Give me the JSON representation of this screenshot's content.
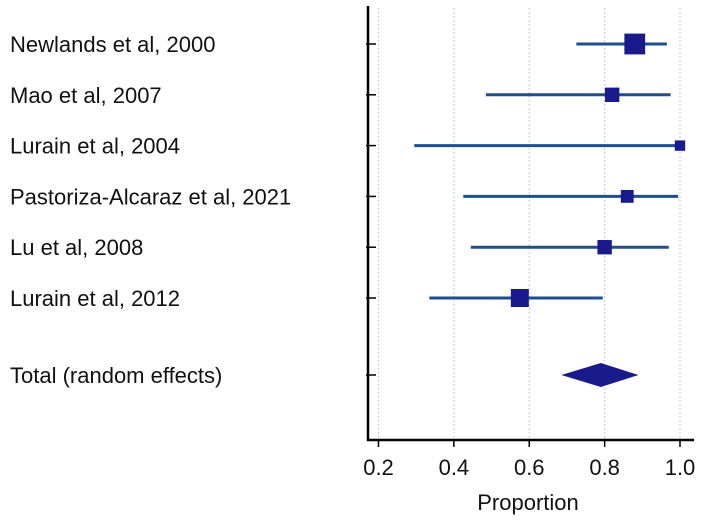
{
  "chart_data": {
    "type": "forest",
    "xlabel": "Proportion",
    "xlim": [
      0.2,
      1.0
    ],
    "xticks": [
      0.2,
      0.4,
      0.6,
      0.8,
      1.0
    ],
    "xtick_labels": [
      "0.2",
      "0.4",
      "0.6",
      "0.8",
      "1.0"
    ],
    "grid": true,
    "marker_color": "#1a1a8c",
    "ci_color": "#1f4e8a",
    "studies": [
      {
        "label": "Newlands et al, 2000",
        "estimate": 0.88,
        "ci_low": 0.725,
        "ci_high": 0.965,
        "weight": 3.2
      },
      {
        "label": "Mao et al, 2007",
        "estimate": 0.82,
        "ci_low": 0.485,
        "ci_high": 0.975,
        "weight": 1.6
      },
      {
        "label": "Lurain et al, 2004",
        "estimate": 1.0,
        "ci_low": 0.295,
        "ci_high": 1.0,
        "weight": 0.6
      },
      {
        "label": "Pastoriza-Alcaraz et al, 2021",
        "estimate": 0.86,
        "ci_low": 0.425,
        "ci_high": 0.995,
        "weight": 1.2
      },
      {
        "label": "Lu et al, 2008",
        "estimate": 0.8,
        "ci_low": 0.445,
        "ci_high": 0.97,
        "weight": 1.6
      },
      {
        "label": "Lurain et al, 2012",
        "estimate": 0.575,
        "ci_low": 0.335,
        "ci_high": 0.795,
        "weight": 2.5
      }
    ],
    "total": {
      "label": "Total (random effects)",
      "estimate": 0.79,
      "ci_low": 0.685,
      "ci_high": 0.89
    }
  }
}
